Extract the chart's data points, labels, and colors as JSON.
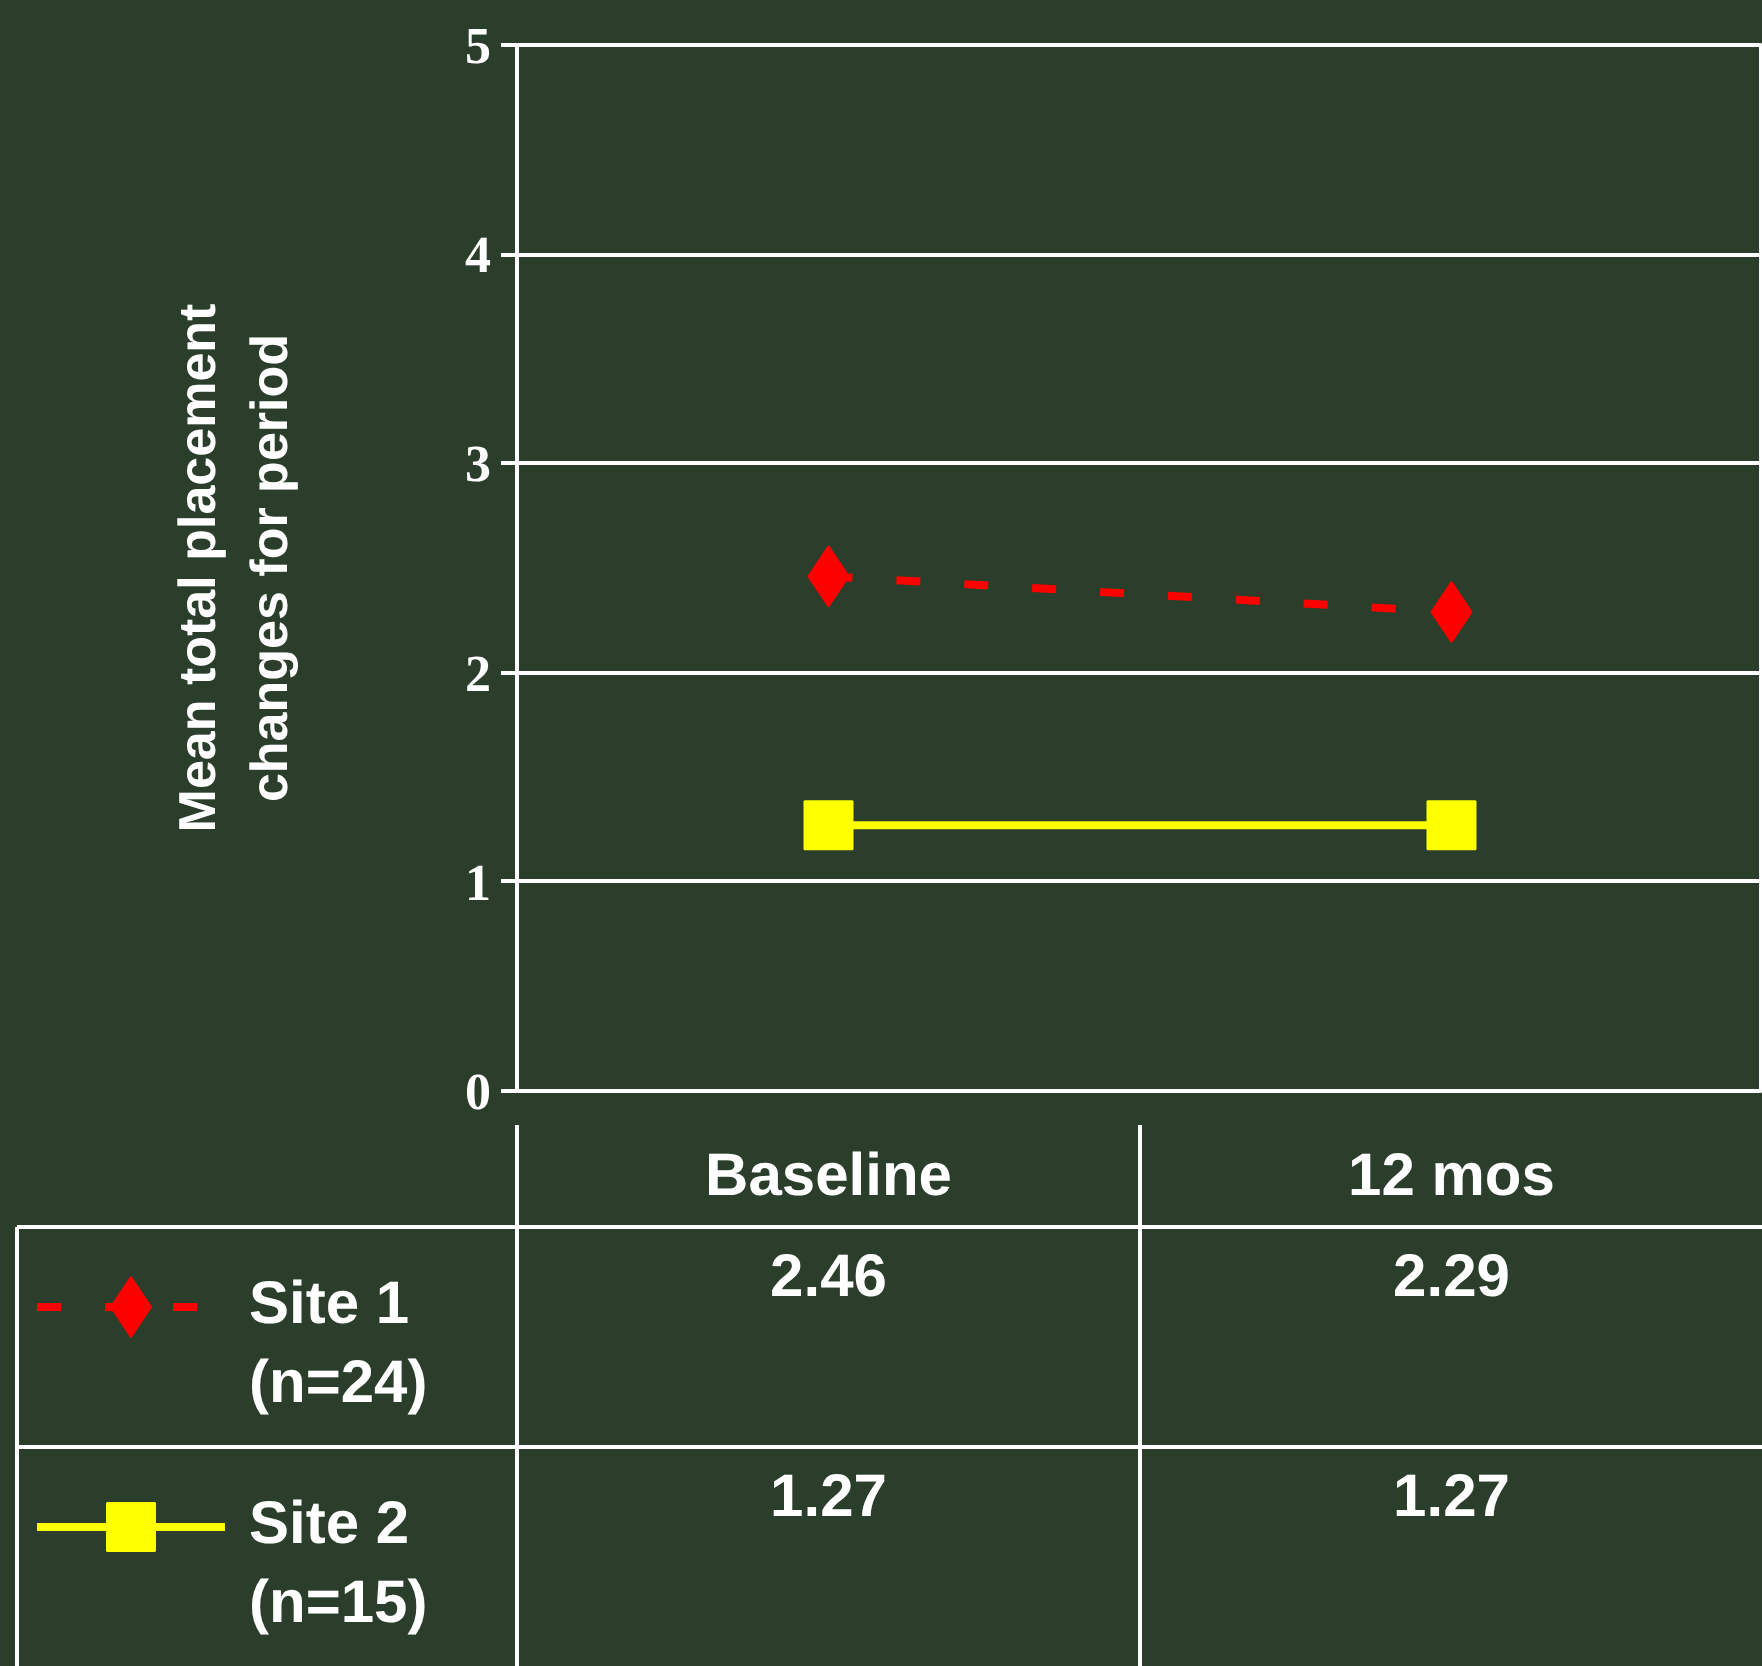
{
  "chart_data": {
    "type": "line",
    "ylabel": "Mean total placement\nchanges for period",
    "categories": [
      "Baseline",
      "12 mos"
    ],
    "ylim": [
      0,
      5
    ],
    "yticks": [
      0,
      1,
      2,
      3,
      4,
      5
    ],
    "grid": "y",
    "legend": "bottom",
    "data_labels": true,
    "series": [
      {
        "name": "Site 1 (n=24)",
        "color": "#ff0000",
        "values": [
          2.46,
          2.29
        ],
        "marker": "diamond",
        "line_style": "dashed"
      },
      {
        "name": "Site 2 (n=15)",
        "color": "#ffff00",
        "values": [
          1.27,
          1.27
        ],
        "marker": "square",
        "line_style": "solid"
      }
    ]
  }
}
